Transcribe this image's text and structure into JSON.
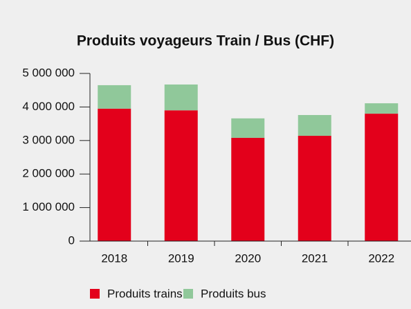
{
  "chart_data": {
    "type": "stacked_bar",
    "title": "Produits voyageurs Train / Bus (CHF)",
    "categories": [
      "2018",
      "2019",
      "2020",
      "2021",
      "2022"
    ],
    "series": [
      {
        "name": "Produits trains",
        "color": "#e3001b",
        "values": [
          3950000,
          3900000,
          3080000,
          3140000,
          3800000
        ]
      },
      {
        "name": "Produits bus",
        "color": "#90c89a",
        "values": [
          700000,
          770000,
          580000,
          620000,
          310000
        ]
      }
    ],
    "ylim": [
      0,
      5000000
    ],
    "yticks": [
      0,
      {
        "value": 1000000,
        "label": "1 000 000"
      },
      {
        "value": 2000000,
        "label": "2 000 000"
      },
      {
        "value": 3000000,
        "label": "3 000 000"
      },
      {
        "value": 4000000,
        "label": "4 000 000"
      },
      {
        "value": 5000000,
        "label": "5 000 000"
      }
    ],
    "legend": "bottom"
  }
}
